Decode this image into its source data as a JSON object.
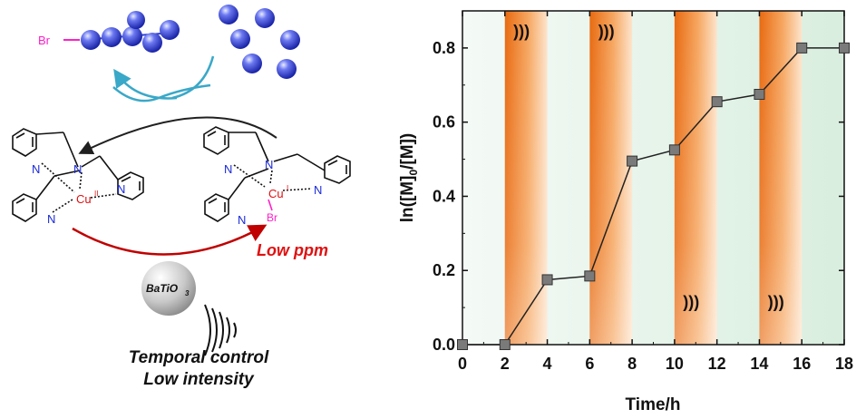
{
  "scheme": {
    "initiator_label": "Br",
    "metal_ox": "Cu",
    "metal_ox_charge": "II",
    "metal_red": "Cu",
    "metal_red_charge": "I",
    "metal_red_ligand": "Br",
    "nitrogen": "N",
    "low_ppm": "Low ppm",
    "catalyst": "BaTiO",
    "catalyst_sub": "3",
    "caption_line1": "Temporal control",
    "caption_line2": "Low intensity",
    "colors": {
      "monomer_blue": "#2f3fd8",
      "bromine_magenta": "#ff20c8",
      "copper_red": "#e01010",
      "arrow_dark": "#202020",
      "arrow_red": "#c00000",
      "arrow_cyan": "#3aa8c8"
    }
  },
  "chart_data": {
    "type": "line",
    "xlabel": "Time/h",
    "ylabel_main": "ln([M]",
    "ylabel_sub": "0",
    "ylabel_tail": "/[M])",
    "x_ticks": [
      "0",
      "2",
      "4",
      "6",
      "8",
      "10",
      "12",
      "14",
      "16",
      "18"
    ],
    "y_ticks": [
      "0.0",
      "0.2",
      "0.4",
      "0.6",
      "0.8"
    ],
    "xlim": [
      0,
      18
    ],
    "ylim": [
      0,
      0.9
    ],
    "ultrasound_on_intervals": [
      [
        2,
        4
      ],
      [
        6,
        8
      ],
      [
        10,
        12
      ],
      [
        14,
        16
      ]
    ],
    "ultrasound_symbol": ")))",
    "ultrasound_symbol_positions": [
      [
        2.4,
        0.83
      ],
      [
        6.4,
        0.83
      ],
      [
        10.4,
        0.1
      ],
      [
        14.4,
        0.1
      ]
    ],
    "series": [
      {
        "x": [
          0,
          2,
          4,
          6,
          8,
          10,
          12,
          14,
          16,
          18
        ],
        "y": [
          0.0,
          0.0,
          0.175,
          0.185,
          0.495,
          0.525,
          0.655,
          0.675,
          0.8,
          0.8
        ]
      }
    ],
    "colors": {
      "on_band": "#f07820",
      "off_band": "#cfe8d8",
      "line": "#222222",
      "marker": "#7a7a7a"
    }
  }
}
